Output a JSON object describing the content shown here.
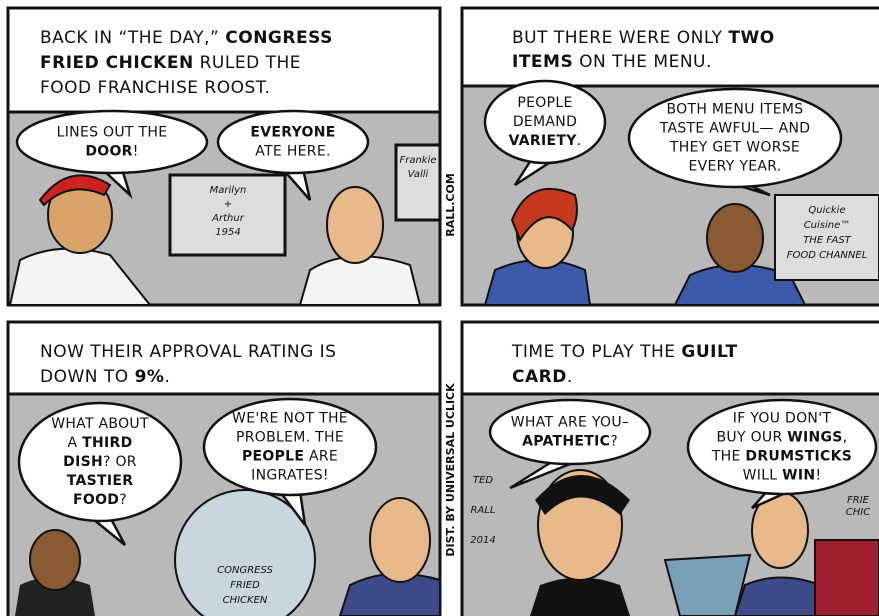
{
  "panels": [
    {
      "caption": [
        [
          "BACK IN “THE DAY,” ",
          {
            "t": "CONGRESS",
            "b": true
          }
        ],
        [
          {
            "t": "FRIED CHICKEN",
            "b": true
          },
          " RULED THE"
        ],
        [
          "FOOD FRANCHISE ROOST."
        ]
      ],
      "bubbles": [
        {
          "lines": [
            [
              "LINES OUT THE"
            ],
            [
              {
                "t": "DOOR",
                "b": true
              },
              "!"
            ]
          ]
        },
        {
          "lines": [
            [
              {
                "t": "EVERYONE",
                "b": true
              }
            ],
            [
              "ATE HERE."
            ]
          ]
        }
      ],
      "signs": [
        {
          "lines": [
            [
              "Marilyn"
            ],
            [
              "+"
            ],
            [
              "Arthur"
            ],
            [
              "1954"
            ]
          ]
        },
        {
          "lines": [
            [
              "Frankie"
            ],
            [
              "Valli"
            ]
          ]
        }
      ]
    },
    {
      "caption": [
        [
          "BUT THERE WERE ONLY ",
          {
            "t": "TWO",
            "b": true
          }
        ],
        [
          {
            "t": "ITEMS",
            "b": true
          },
          " ON THE MENU."
        ]
      ],
      "bubbles": [
        {
          "lines": [
            [
              "PEOPLE"
            ],
            [
              "DEMAND"
            ],
            [
              {
                "t": "VARIETY",
                "b": true
              },
              "."
            ]
          ]
        },
        {
          "lines": [
            [
              "BOTH MENU ITEMS"
            ],
            [
              "TASTE AWFUL— AND"
            ],
            [
              "THEY GET WORSE"
            ],
            [
              "EVERY YEAR."
            ]
          ]
        }
      ],
      "signs": [
        {
          "lines": [
            [
              "Quickie"
            ],
            [
              "Cuisine™"
            ],
            [
              "THE FAST"
            ],
            [
              "FOOD CHANNEL"
            ]
          ]
        }
      ]
    },
    {
      "caption": [
        [
          "NOW THEIR APPROVAL RATING IS"
        ],
        [
          "DOWN TO ",
          {
            "t": "9%",
            "b": true
          },
          "."
        ]
      ],
      "bubbles": [
        {
          "lines": [
            [
              "WHAT ABOUT"
            ],
            [
              "A ",
              {
                "t": "THIRD",
                "b": true
              }
            ],
            [
              {
                "t": "DISH",
                "b": true
              },
              "? OR"
            ],
            [
              {
                "t": "TASTIER",
                "b": true
              }
            ],
            [
              {
                "t": "FOOD",
                "b": true
              },
              "?"
            ]
          ]
        },
        {
          "lines": [
            [
              "WE'RE NOT THE"
            ],
            [
              "PROBLEM. THE"
            ],
            [
              {
                "t": "PEOPLE",
                "b": true
              },
              " ARE"
            ],
            [
              "INGRATES!"
            ]
          ]
        }
      ],
      "signs": [
        {
          "lines": [
            [
              "CONGRESS"
            ],
            [
              "FRIED"
            ],
            [
              "CHICKEN"
            ]
          ]
        }
      ]
    },
    {
      "caption": [
        [
          "TIME TO PLAY THE ",
          {
            "t": "GUILT",
            "b": true
          }
        ],
        [
          {
            "t": "CARD",
            "b": true
          },
          "."
        ]
      ],
      "bubbles": [
        {
          "lines": [
            [
              "WHAT ARE YOU–"
            ],
            [
              {
                "t": "APATHETIC",
                "b": true
              },
              "?"
            ]
          ]
        },
        {
          "lines": [
            [
              "IF YOU DON'T"
            ],
            [
              "BUY OUR ",
              {
                "t": "WINGS",
                "b": true
              },
              ","
            ],
            [
              "THE ",
              {
                "t": "DRUMSTICKS",
                "b": true
              }
            ],
            [
              "WILL ",
              {
                "t": "WIN",
                "b": true
              },
              "!"
            ]
          ]
        }
      ],
      "signs": [
        {
          "lines": [
            [
              "TED"
            ],
            [
              "RALL"
            ],
            [
              "2014"
            ]
          ]
        },
        {
          "lines": [
            [
              "FRIE"
            ],
            [
              "CHIC"
            ]
          ]
        }
      ]
    }
  ],
  "credits": [
    "RALL.COM",
    "DIST. BY UNIVERSAL UCLICK"
  ]
}
